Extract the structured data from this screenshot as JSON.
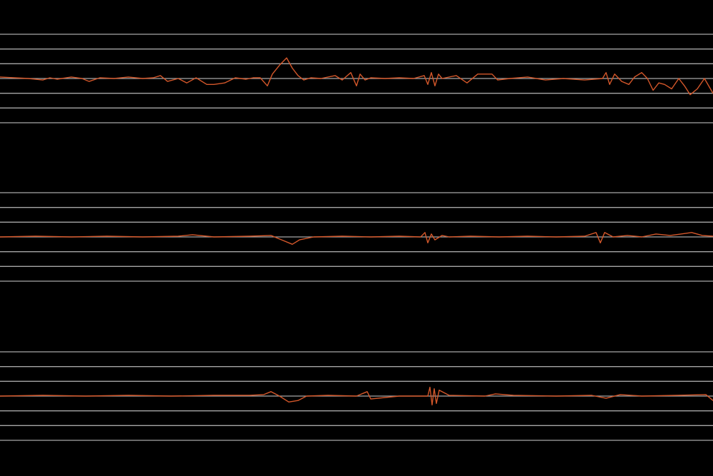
{
  "chart_data": {
    "type": "line",
    "title": "",
    "xlabel": "",
    "ylabel": "",
    "grid": true,
    "legend": "none",
    "background_color": "#000000",
    "grid_color": "#a6a6a6",
    "trace_color": "#d4572a",
    "xlim": [
      0,
      1000
    ],
    "panels": [
      {
        "gridline_values": [
          -3,
          -2,
          -1,
          0,
          1,
          2,
          3
        ],
        "ylim": [
          -3,
          3
        ],
        "series": [
          {
            "x": [
              0,
              20,
              40,
              60,
              70,
              80,
              100,
              115,
              125,
              140,
              160,
              180,
              200,
              215,
              225,
              235,
              250,
              262,
              275,
              290,
              300,
              315,
              330,
              345,
              355,
              365,
              375,
              382,
              392,
              402,
              410,
              418,
              426,
              436,
              450,
              470,
              480,
              492,
              500,
              505,
              512,
              520,
              540,
              560,
              580,
              595,
              600,
              605,
              610,
              615,
              620,
              640,
              655,
              670,
              690,
              698,
              715,
              740,
              765,
              790,
              820,
              845,
              850,
              855,
              862,
              872,
              882,
              890,
              900,
              908,
              916,
              924,
              932,
              942,
              952,
              960,
              968,
              978,
              988,
              1000
            ],
            "y": [
              0.1,
              0.05,
              0.0,
              -0.1,
              0.05,
              -0.05,
              0.1,
              0.0,
              -0.2,
              0.05,
              0.0,
              0.1,
              0.0,
              0.05,
              0.2,
              -0.2,
              0.0,
              -0.3,
              0.05,
              -0.4,
              -0.4,
              -0.3,
              0.05,
              -0.05,
              0.05,
              0.05,
              -0.5,
              0.3,
              0.9,
              1.4,
              0.7,
              0.2,
              -0.1,
              0.05,
              0.0,
              0.2,
              -0.1,
              0.4,
              -0.5,
              0.3,
              -0.1,
              0.05,
              0.0,
              0.05,
              0.0,
              0.2,
              -0.4,
              0.4,
              -0.5,
              0.3,
              0.0,
              0.2,
              -0.3,
              0.3,
              0.3,
              -0.1,
              0.0,
              0.1,
              -0.1,
              0.0,
              -0.1,
              0.0,
              0.4,
              -0.4,
              0.3,
              -0.2,
              -0.4,
              0.1,
              0.4,
              0.0,
              -0.8,
              -0.3,
              -0.4,
              -0.7,
              0.0,
              -0.5,
              -1.1,
              -0.7,
              0.0,
              -1.0
            ]
          }
        ]
      },
      {
        "gridline_values": [
          -3,
          -2,
          -1,
          0,
          1,
          2,
          3
        ],
        "ylim": [
          -3,
          3
        ],
        "series": [
          {
            "x": [
              0,
              50,
              100,
              150,
              200,
              250,
              270,
              300,
              350,
              380,
              395,
              410,
              420,
              440,
              480,
              520,
              560,
              590,
              596,
              600,
              605,
              610,
              620,
              630,
              660,
              700,
              740,
              780,
              820,
              836,
              842,
              848,
              860,
              880,
              900,
              920,
              940,
              955,
              970,
              985,
              1000
            ],
            "y": [
              0.0,
              0.05,
              0.0,
              0.05,
              0.0,
              0.05,
              0.15,
              0.0,
              0.05,
              0.1,
              -0.2,
              -0.5,
              -0.2,
              0.0,
              0.05,
              0.0,
              0.05,
              0.0,
              0.3,
              -0.4,
              0.2,
              -0.2,
              0.1,
              0.0,
              0.05,
              0.0,
              0.05,
              0.0,
              0.05,
              0.3,
              -0.4,
              0.3,
              0.0,
              0.1,
              0.0,
              0.2,
              0.1,
              0.2,
              0.3,
              0.1,
              0.05
            ]
          }
        ]
      },
      {
        "gridline_values": [
          -3,
          -2,
          -1,
          0,
          1,
          2,
          3
        ],
        "ylim": [
          -3,
          3
        ],
        "series": [
          {
            "x": [
              0,
              60,
              120,
              180,
              240,
              300,
              350,
              370,
              380,
              392,
              405,
              418,
              430,
              460,
              500,
              515,
              520,
              560,
              600,
              603,
              606,
              609,
              612,
              616,
              630,
              680,
              695,
              720,
              780,
              830,
              850,
              870,
              900,
              950,
              990,
              1000
            ],
            "y": [
              0.0,
              0.05,
              0.0,
              0.05,
              0.0,
              0.05,
              0.05,
              0.1,
              0.3,
              0.0,
              -0.4,
              -0.3,
              0.0,
              0.05,
              0.0,
              0.3,
              -0.2,
              0.0,
              0.0,
              0.6,
              -0.6,
              0.5,
              -0.5,
              0.4,
              0.05,
              0.0,
              0.15,
              0.05,
              0.0,
              0.05,
              -0.15,
              0.1,
              0.0,
              0.05,
              0.1,
              -0.3
            ]
          }
        ]
      }
    ]
  }
}
